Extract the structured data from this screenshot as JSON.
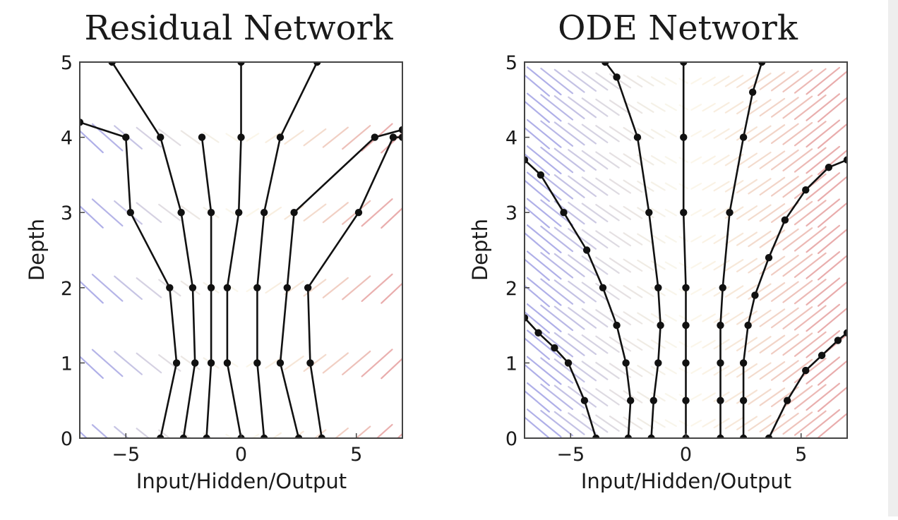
{
  "chart_data": [
    {
      "type": "line",
      "title": "Residual Network",
      "xlabel": "Input/Hidden/Output",
      "ylabel": "Depth",
      "xlim": [
        -7,
        7
      ],
      "ylim": [
        0,
        5
      ],
      "xticks": [
        -5,
        0,
        5
      ],
      "xtick_labels": [
        "−5",
        "0",
        "5"
      ],
      "yticks": [
        0,
        1,
        2,
        3,
        4,
        5
      ],
      "ytick_labels": [
        "0",
        "1",
        "2",
        "3",
        "4",
        "5"
      ],
      "grid": false,
      "field_colors": {
        "negative": "#6f6fd6",
        "positive": "#d86a6a",
        "center": "#e8cf7a"
      },
      "field_rows": [
        0,
        1,
        2,
        3,
        4
      ],
      "series": [
        {
          "x": [
            -3.5,
            -2.8,
            -3.1,
            -4.8,
            -5.0,
            -7.0
          ],
          "y": [
            0,
            1,
            2,
            3,
            4,
            4.2
          ]
        },
        {
          "x": [
            -2.5,
            -2.0,
            -2.1,
            -2.6,
            -3.5,
            -5.6
          ],
          "y": [
            0,
            1,
            2,
            3,
            4,
            5
          ]
        },
        {
          "x": [
            -1.5,
            -1.3,
            -1.3,
            -1.3,
            -1.7
          ],
          "y": [
            0,
            1,
            2,
            3,
            4
          ]
        },
        {
          "x": [
            0.0,
            -0.6,
            -0.6,
            -0.1,
            0.0,
            0.0
          ],
          "y": [
            0,
            1,
            2,
            3,
            4,
            5
          ]
        },
        {
          "x": [
            1.0,
            0.7,
            0.7,
            1.0,
            1.7,
            3.3
          ],
          "y": [
            0,
            1,
            2,
            3,
            4,
            5
          ]
        },
        {
          "x": [
            2.5,
            1.7,
            2.0,
            2.3,
            5.8,
            7.0
          ],
          "y": [
            0,
            1,
            2,
            3,
            4,
            4.1
          ]
        },
        {
          "x": [
            3.5,
            3.0,
            2.9,
            5.1,
            6.6,
            7.0
          ],
          "y": [
            0,
            1,
            2,
            3,
            4,
            4.0
          ]
        }
      ]
    },
    {
      "type": "line",
      "title": "ODE Network",
      "xlabel": "Input/Hidden/Output",
      "ylabel": "Depth",
      "xlim": [
        -7,
        7
      ],
      "ylim": [
        0,
        5
      ],
      "xticks": [
        -5,
        0,
        5
      ],
      "xtick_labels": [
        "−5",
        "0",
        "5"
      ],
      "yticks": [
        0,
        1,
        2,
        3,
        4,
        5
      ],
      "ytick_labels": [
        "0",
        "1",
        "2",
        "3",
        "4",
        "5"
      ],
      "grid": false,
      "field_colors": {
        "negative": "#6f6fd6",
        "positive": "#d86a6a",
        "center": "#e8cf7a"
      },
      "field_rows": [
        0.2,
        0.55,
        0.9,
        1.25,
        1.6,
        1.95,
        2.3,
        2.65,
        3.0,
        3.35,
        3.7,
        4.05,
        4.4,
        4.75
      ],
      "series": [
        {
          "x": [
            -3.9,
            -4.4,
            -5.1,
            -5.7,
            -6.4,
            -7.0
          ],
          "y": [
            0,
            0.5,
            1.0,
            1.2,
            1.4,
            1.6
          ]
        },
        {
          "x": [
            -2.5,
            -2.4,
            -2.6,
            -3.0,
            -3.6,
            -4.3,
            -5.3,
            -6.3,
            -7.0
          ],
          "y": [
            0,
            0.5,
            1.0,
            1.5,
            2.0,
            2.5,
            3.0,
            3.5,
            3.7
          ]
        },
        {
          "x": [
            -1.5,
            -1.4,
            -1.2,
            -1.1,
            -1.2,
            -1.6,
            -2.1,
            -3.0,
            -3.5
          ],
          "y": [
            0,
            0.5,
            1.0,
            1.5,
            2.0,
            3.0,
            4.0,
            4.8,
            5.0
          ]
        },
        {
          "x": [
            0.0,
            0.0,
            0.0,
            0.0,
            0.0,
            -0.1,
            -0.1,
            -0.1
          ],
          "y": [
            0,
            0.5,
            1.0,
            1.5,
            2.0,
            3.0,
            4.0,
            5.0
          ]
        },
        {
          "x": [
            1.5,
            1.5,
            1.5,
            1.5,
            1.6,
            1.9,
            2.5,
            2.9,
            3.3
          ],
          "y": [
            0,
            0.5,
            1.0,
            1.5,
            2.0,
            3.0,
            4.0,
            4.6,
            5.0
          ]
        },
        {
          "x": [
            2.5,
            2.5,
            2.5,
            2.7,
            3.0,
            3.6,
            4.3,
            5.2,
            6.2,
            7.0
          ],
          "y": [
            0,
            0.5,
            1.0,
            1.5,
            1.9,
            2.4,
            2.9,
            3.3,
            3.6,
            3.7
          ]
        },
        {
          "x": [
            3.6,
            4.4,
            5.2,
            5.9,
            6.6,
            7.0
          ],
          "y": [
            0,
            0.5,
            0.9,
            1.1,
            1.3,
            1.4
          ]
        }
      ]
    }
  ]
}
